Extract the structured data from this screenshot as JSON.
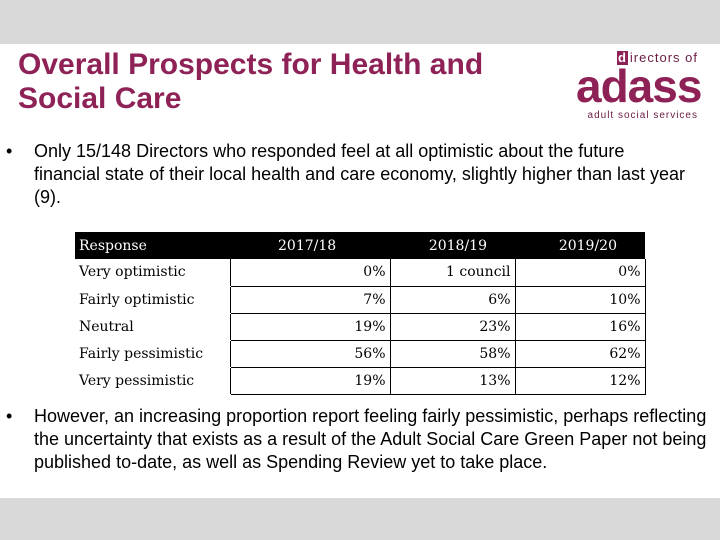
{
  "title": "Overall Prospects for Health and Social Care",
  "logo": {
    "top_letter": "d",
    "top_text": "irectors of",
    "main": "adass",
    "sub": "adult social services"
  },
  "bullets": [
    "Only 15/148 Directors who responded feel at all optimistic about the future financial state of their local health and care economy, slightly higher than last year (9).",
    "However, an increasing proportion report feeling fairly pessimistic, perhaps reflecting the uncertainty that exists as a result of the Adult Social Care Green Paper not being published to-date, as well as Spending Review yet to take place."
  ],
  "bullet_symbol": "•",
  "table": {
    "headers": [
      "Response",
      "2017/18",
      "2018/19",
      "2019/20"
    ],
    "rows": [
      [
        "Very optimistic",
        "0%",
        "1 council",
        "0%"
      ],
      [
        "Fairly optimistic",
        "7%",
        "6%",
        "10%"
      ],
      [
        "Neutral",
        "19%",
        "23%",
        "16%"
      ],
      [
        "Fairly pessimistic",
        "56%",
        "58%",
        "62%"
      ],
      [
        "Very pessimistic",
        "19%",
        "13%",
        "12%"
      ]
    ]
  },
  "colors": {
    "title": "#8e2257",
    "header_bg": "#000000",
    "background": "#d9d9d9"
  }
}
